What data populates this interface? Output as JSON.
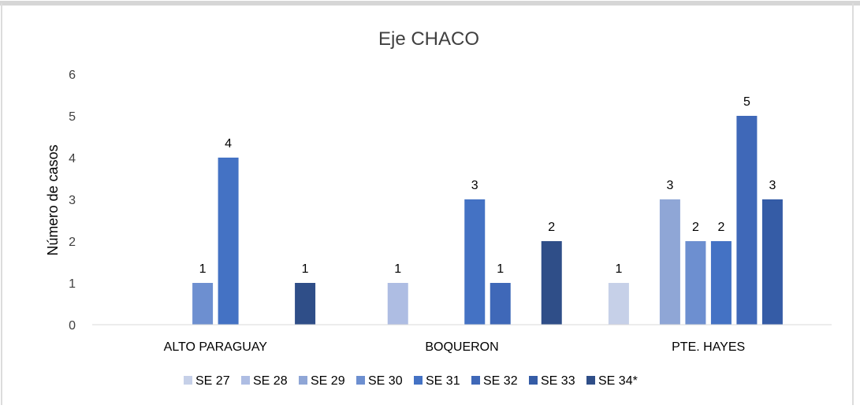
{
  "chart_data": {
    "type": "bar",
    "title": "Eje CHACO",
    "ylabel": "Número de casos",
    "xlabel": "",
    "ylim": [
      0,
      6
    ],
    "yticks": [
      0,
      1,
      2,
      3,
      4,
      5,
      6
    ],
    "grid": false,
    "legend_position": "bottom",
    "categories": [
      "ALTO PARAGUAY",
      "BOQUERON",
      "PTE. HAYES"
    ],
    "series": [
      {
        "name": "SE 27",
        "color": "#c6d0e8",
        "values": [
          null,
          null,
          1
        ]
      },
      {
        "name": "SE 28",
        "color": "#aebde3",
        "values": [
          null,
          1,
          null
        ]
      },
      {
        "name": "SE 29",
        "color": "#8fa6d6",
        "values": [
          null,
          null,
          3
        ]
      },
      {
        "name": "SE 30",
        "color": "#6d8fd0",
        "values": [
          1,
          null,
          2
        ]
      },
      {
        "name": "SE 31",
        "color": "#4472c4",
        "values": [
          4,
          3,
          2
        ]
      },
      {
        "name": "SE 32",
        "color": "#3f68b8",
        "values": [
          null,
          1,
          5
        ]
      },
      {
        "name": "SE 33",
        "color": "#355ca6",
        "values": [
          null,
          null,
          3
        ]
      },
      {
        "name": "SE 34*",
        "color": "#2f4e88",
        "values": [
          1,
          2,
          null
        ]
      }
    ]
  }
}
